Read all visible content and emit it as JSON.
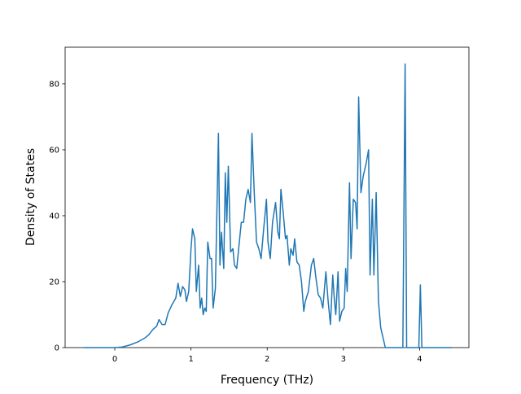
{
  "chart_data": {
    "type": "line",
    "xlabel": "Frequency (THz)",
    "ylabel": "Density of States",
    "xlim": [
      -0.652,
      4.647
    ],
    "ylim": [
      0,
      91.1
    ],
    "xticks": [
      0,
      1,
      2,
      3,
      4
    ],
    "yticks": [
      0,
      20,
      40,
      60,
      80
    ],
    "color": "#1f77b4",
    "x": [
      -0.41,
      0.0,
      0.1,
      0.2,
      0.3,
      0.4,
      0.45,
      0.5,
      0.55,
      0.58,
      0.62,
      0.66,
      0.7,
      0.75,
      0.8,
      0.83,
      0.86,
      0.89,
      0.92,
      0.94,
      0.97,
      1.0,
      1.02,
      1.05,
      1.07,
      1.1,
      1.12,
      1.14,
      1.16,
      1.18,
      1.2,
      1.22,
      1.25,
      1.27,
      1.29,
      1.32,
      1.36,
      1.38,
      1.4,
      1.43,
      1.45,
      1.47,
      1.49,
      1.52,
      1.55,
      1.57,
      1.6,
      1.63,
      1.66,
      1.69,
      1.72,
      1.75,
      1.78,
      1.8,
      1.83,
      1.86,
      1.89,
      1.92,
      1.95,
      1.99,
      2.01,
      2.04,
      2.07,
      2.11,
      2.14,
      2.16,
      2.18,
      2.21,
      2.24,
      2.26,
      2.29,
      2.31,
      2.34,
      2.36,
      2.39,
      2.42,
      2.45,
      2.48,
      2.5,
      2.54,
      2.58,
      2.61,
      2.64,
      2.67,
      2.7,
      2.73,
      2.77,
      2.8,
      2.83,
      2.86,
      2.88,
      2.9,
      2.93,
      2.95,
      2.98,
      3.01,
      3.03,
      3.05,
      3.08,
      3.1,
      3.13,
      3.16,
      3.18,
      3.2,
      3.23,
      3.26,
      3.3,
      3.33,
      3.35,
      3.38,
      3.4,
      3.43,
      3.46,
      3.49,
      3.52,
      3.55,
      3.78,
      3.81,
      3.83,
      3.99,
      4.01,
      4.03,
      4.42
    ],
    "values": [
      0,
      0,
      0.2,
      0.8,
      1.7,
      3,
      4,
      5.5,
      6.5,
      8.5,
      7,
      7,
      10.5,
      13,
      15,
      19.5,
      15.5,
      18.5,
      17.5,
      14,
      17,
      30,
      36,
      33,
      17,
      25,
      12,
      15,
      10,
      12,
      11,
      32,
      27,
      27,
      12,
      18,
      65,
      25,
      35,
      24,
      53,
      38,
      55,
      29,
      30,
      25,
      24,
      31,
      38,
      38,
      45,
      48,
      44,
      65,
      47,
      32,
      30,
      27,
      35,
      45,
      32,
      27,
      38,
      44,
      35,
      33,
      48,
      41,
      33,
      34,
      25,
      30,
      28,
      33,
      26,
      25,
      20,
      11,
      14,
      17,
      25,
      27,
      21,
      16,
      15,
      12,
      23,
      14,
      7,
      22,
      15,
      10,
      23,
      8,
      11,
      12,
      24,
      17,
      50,
      27,
      45,
      44,
      36,
      76,
      47,
      52,
      56,
      60,
      22,
      45,
      22,
      47,
      14,
      6,
      3,
      0,
      0,
      86,
      0,
      0,
      19,
      0,
      0
    ]
  }
}
